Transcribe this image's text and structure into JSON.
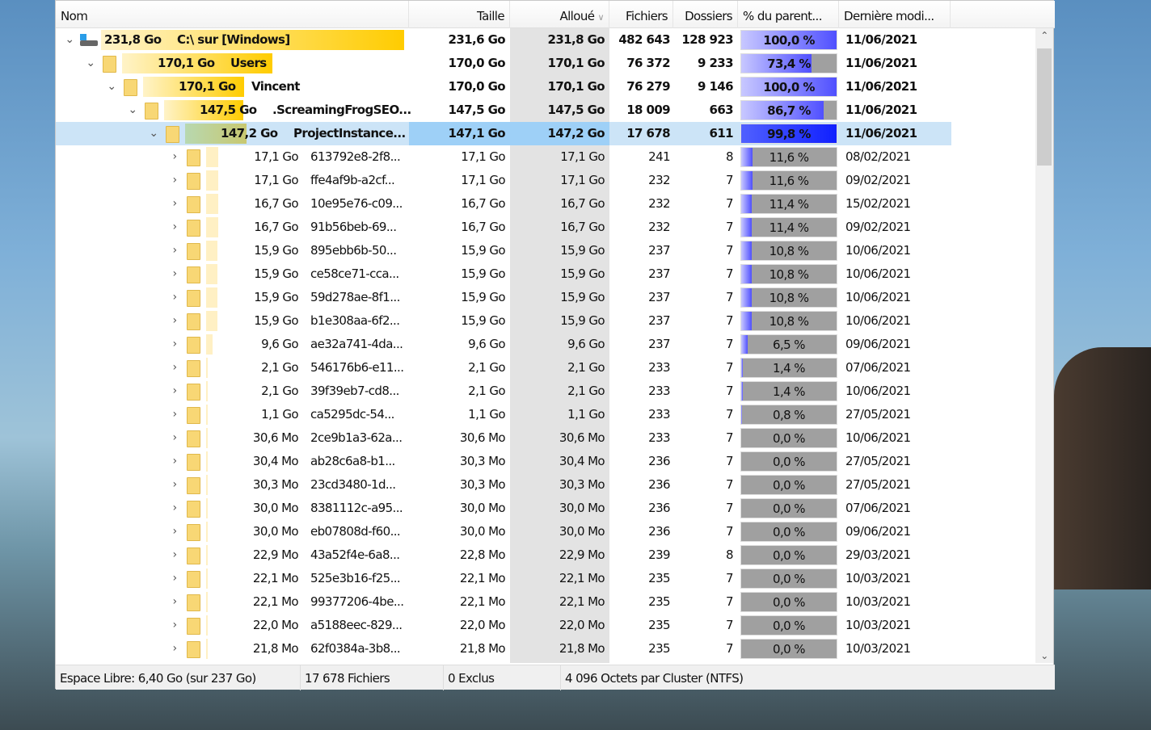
{
  "columns": {
    "name": "Nom",
    "size": "Taille",
    "alloc": "Alloué",
    "files": "Fichiers",
    "folders": "Dossiers",
    "pct": "% du parent...",
    "date": "Dernière modi..."
  },
  "rows": [
    {
      "level": 0,
      "expanded": true,
      "icon": "drive-icon",
      "bold": true,
      "label_size": "231,8 Go",
      "name": "C:\\  sur  [Windows]",
      "size": "231,6 Go",
      "alloc": "231,8 Go",
      "files": "482 643",
      "folders": "128 923",
      "pct": 100.0,
      "pct_text": "100,0 %",
      "date": "11/06/2021"
    },
    {
      "level": 1,
      "expanded": true,
      "bold": true,
      "label_size": "170,1 Go",
      "name": "Users",
      "size": "170,0 Go",
      "alloc": "170,1 Go",
      "files": "76 372",
      "folders": "9 233",
      "pct": 73.4,
      "pct_text": "73,4 %",
      "date": "11/06/2021"
    },
    {
      "level": 2,
      "expanded": true,
      "bold": true,
      "label_size": "170,1 Go",
      "name": "Vincent",
      "size": "170,0 Go",
      "alloc": "170,1 Go",
      "files": "76 279",
      "folders": "9 146",
      "pct": 100.0,
      "pct_text": "100,0 %",
      "date": "11/06/2021"
    },
    {
      "level": 3,
      "expanded": true,
      "bold": true,
      "label_size": "147,5 Go",
      "name": ".ScreamingFrogSEO...",
      "size": "147,5 Go",
      "alloc": "147,5 Go",
      "files": "18 009",
      "folders": "663",
      "pct": 86.7,
      "pct_text": "86,7 %",
      "date": "11/06/2021"
    },
    {
      "level": 4,
      "expanded": true,
      "bold": true,
      "selected": true,
      "label_size": "147,2 Go",
      "name": "ProjectInstance...",
      "size": "147,1 Go",
      "alloc": "147,2 Go",
      "files": "17 678",
      "folders": "611",
      "pct": 99.8,
      "pct_text": "99,8 %",
      "date": "11/06/2021"
    },
    {
      "level": 5,
      "label_size": "17,1 Go",
      "name": "613792e8-2f8...",
      "size": "17,1 Go",
      "alloc": "17,1 Go",
      "files": "241",
      "folders": "8",
      "pct": 11.6,
      "pct_text": "11,6 %",
      "date": "08/02/2021"
    },
    {
      "level": 5,
      "label_size": "17,1 Go",
      "name": "ffe4af9b-a2cf...",
      "size": "17,1 Go",
      "alloc": "17,1 Go",
      "files": "232",
      "folders": "7",
      "pct": 11.6,
      "pct_text": "11,6 %",
      "date": "09/02/2021"
    },
    {
      "level": 5,
      "label_size": "16,7 Go",
      "name": "10e95e76-c09...",
      "size": "16,7 Go",
      "alloc": "16,7 Go",
      "files": "232",
      "folders": "7",
      "pct": 11.4,
      "pct_text": "11,4 %",
      "date": "15/02/2021"
    },
    {
      "level": 5,
      "label_size": "16,7 Go",
      "name": "91b56beb-69...",
      "size": "16,7 Go",
      "alloc": "16,7 Go",
      "files": "232",
      "folders": "7",
      "pct": 11.4,
      "pct_text": "11,4 %",
      "date": "09/02/2021"
    },
    {
      "level": 5,
      "label_size": "15,9 Go",
      "name": "895ebb6b-50...",
      "size": "15,9 Go",
      "alloc": "15,9 Go",
      "files": "237",
      "folders": "7",
      "pct": 10.8,
      "pct_text": "10,8 %",
      "date": "10/06/2021"
    },
    {
      "level": 5,
      "label_size": "15,9 Go",
      "name": "ce58ce71-cca...",
      "size": "15,9 Go",
      "alloc": "15,9 Go",
      "files": "237",
      "folders": "7",
      "pct": 10.8,
      "pct_text": "10,8 %",
      "date": "10/06/2021"
    },
    {
      "level": 5,
      "label_size": "15,9 Go",
      "name": "59d278ae-8f1...",
      "size": "15,9 Go",
      "alloc": "15,9 Go",
      "files": "237",
      "folders": "7",
      "pct": 10.8,
      "pct_text": "10,8 %",
      "date": "10/06/2021"
    },
    {
      "level": 5,
      "label_size": "15,9 Go",
      "name": "b1e308aa-6f2...",
      "size": "15,9 Go",
      "alloc": "15,9 Go",
      "files": "237",
      "folders": "7",
      "pct": 10.8,
      "pct_text": "10,8 %",
      "date": "10/06/2021"
    },
    {
      "level": 5,
      "label_size": "9,6 Go",
      "name": "ae32a741-4da...",
      "size": "9,6 Go",
      "alloc": "9,6 Go",
      "files": "237",
      "folders": "7",
      "pct": 6.5,
      "pct_text": "6,5 %",
      "date": "09/06/2021"
    },
    {
      "level": 5,
      "label_size": "2,1 Go",
      "name": "546176b6-e11...",
      "size": "2,1 Go",
      "alloc": "2,1 Go",
      "files": "233",
      "folders": "7",
      "pct": 1.4,
      "pct_text": "1,4 %",
      "date": "07/06/2021"
    },
    {
      "level": 5,
      "label_size": "2,1 Go",
      "name": "39f39eb7-cd8...",
      "size": "2,1 Go",
      "alloc": "2,1 Go",
      "files": "233",
      "folders": "7",
      "pct": 1.4,
      "pct_text": "1,4 %",
      "date": "10/06/2021"
    },
    {
      "level": 5,
      "label_size": "1,1 Go",
      "name": "ca5295dc-54...",
      "size": "1,1 Go",
      "alloc": "1,1 Go",
      "files": "233",
      "folders": "7",
      "pct": 0.8,
      "pct_text": "0,8 %",
      "date": "27/05/2021"
    },
    {
      "level": 5,
      "label_size": "30,6 Mo",
      "name": "2ce9b1a3-62a...",
      "size": "30,6 Mo",
      "alloc": "30,6 Mo",
      "files": "233",
      "folders": "7",
      "pct": 0.0,
      "pct_text": "0,0 %",
      "date": "10/06/2021"
    },
    {
      "level": 5,
      "label_size": "30,4 Mo",
      "name": "ab28c6a8-b1...",
      "size": "30,3 Mo",
      "alloc": "30,4 Mo",
      "files": "236",
      "folders": "7",
      "pct": 0.0,
      "pct_text": "0,0 %",
      "date": "27/05/2021"
    },
    {
      "level": 5,
      "label_size": "30,3 Mo",
      "name": "23cd3480-1d...",
      "size": "30,3 Mo",
      "alloc": "30,3 Mo",
      "files": "236",
      "folders": "7",
      "pct": 0.0,
      "pct_text": "0,0 %",
      "date": "27/05/2021"
    },
    {
      "level": 5,
      "label_size": "30,0 Mo",
      "name": "8381112c-a95...",
      "size": "30,0 Mo",
      "alloc": "30,0 Mo",
      "files": "236",
      "folders": "7",
      "pct": 0.0,
      "pct_text": "0,0 %",
      "date": "07/06/2021"
    },
    {
      "level": 5,
      "label_size": "30,0 Mo",
      "name": "eb07808d-f60...",
      "size": "30,0 Mo",
      "alloc": "30,0 Mo",
      "files": "236",
      "folders": "7",
      "pct": 0.0,
      "pct_text": "0,0 %",
      "date": "09/06/2021"
    },
    {
      "level": 5,
      "label_size": "22,9 Mo",
      "name": "43a52f4e-6a8...",
      "size": "22,8 Mo",
      "alloc": "22,9 Mo",
      "files": "239",
      "folders": "8",
      "pct": 0.0,
      "pct_text": "0,0 %",
      "date": "29/03/2021"
    },
    {
      "level": 5,
      "label_size": "22,1 Mo",
      "name": "525e3b16-f25...",
      "size": "22,1 Mo",
      "alloc": "22,1 Mo",
      "files": "235",
      "folders": "7",
      "pct": 0.0,
      "pct_text": "0,0 %",
      "date": "10/03/2021"
    },
    {
      "level": 5,
      "label_size": "22,1 Mo",
      "name": "99377206-4be...",
      "size": "22,1 Mo",
      "alloc": "22,1 Mo",
      "files": "235",
      "folders": "7",
      "pct": 0.0,
      "pct_text": "0,0 %",
      "date": "10/03/2021"
    },
    {
      "level": 5,
      "label_size": "22,0 Mo",
      "name": "a5188eec-829...",
      "size": "22,0 Mo",
      "alloc": "22,0 Mo",
      "files": "235",
      "folders": "7",
      "pct": 0.0,
      "pct_text": "0,0 %",
      "date": "10/03/2021"
    },
    {
      "level": 5,
      "label_size": "21,8 Mo",
      "name": "62f0384a-3b8...",
      "size": "21,8 Mo",
      "alloc": "21,8 Mo",
      "files": "235",
      "folders": "7",
      "pct": 0.0,
      "pct_text": "0,0 %",
      "date": "10/03/2021"
    }
  ],
  "status": {
    "free": "Espace Libre: 6,40 Go  (sur 237 Go)",
    "files": "17 678 Fichiers",
    "excluded": "0 Exclus",
    "cluster": "4 096 Octets par Cluster (NTFS)"
  },
  "colors": {
    "name_bar": "#ffcc00",
    "pct_bar": "#5050ff",
    "selected": "#cce4f7"
  }
}
